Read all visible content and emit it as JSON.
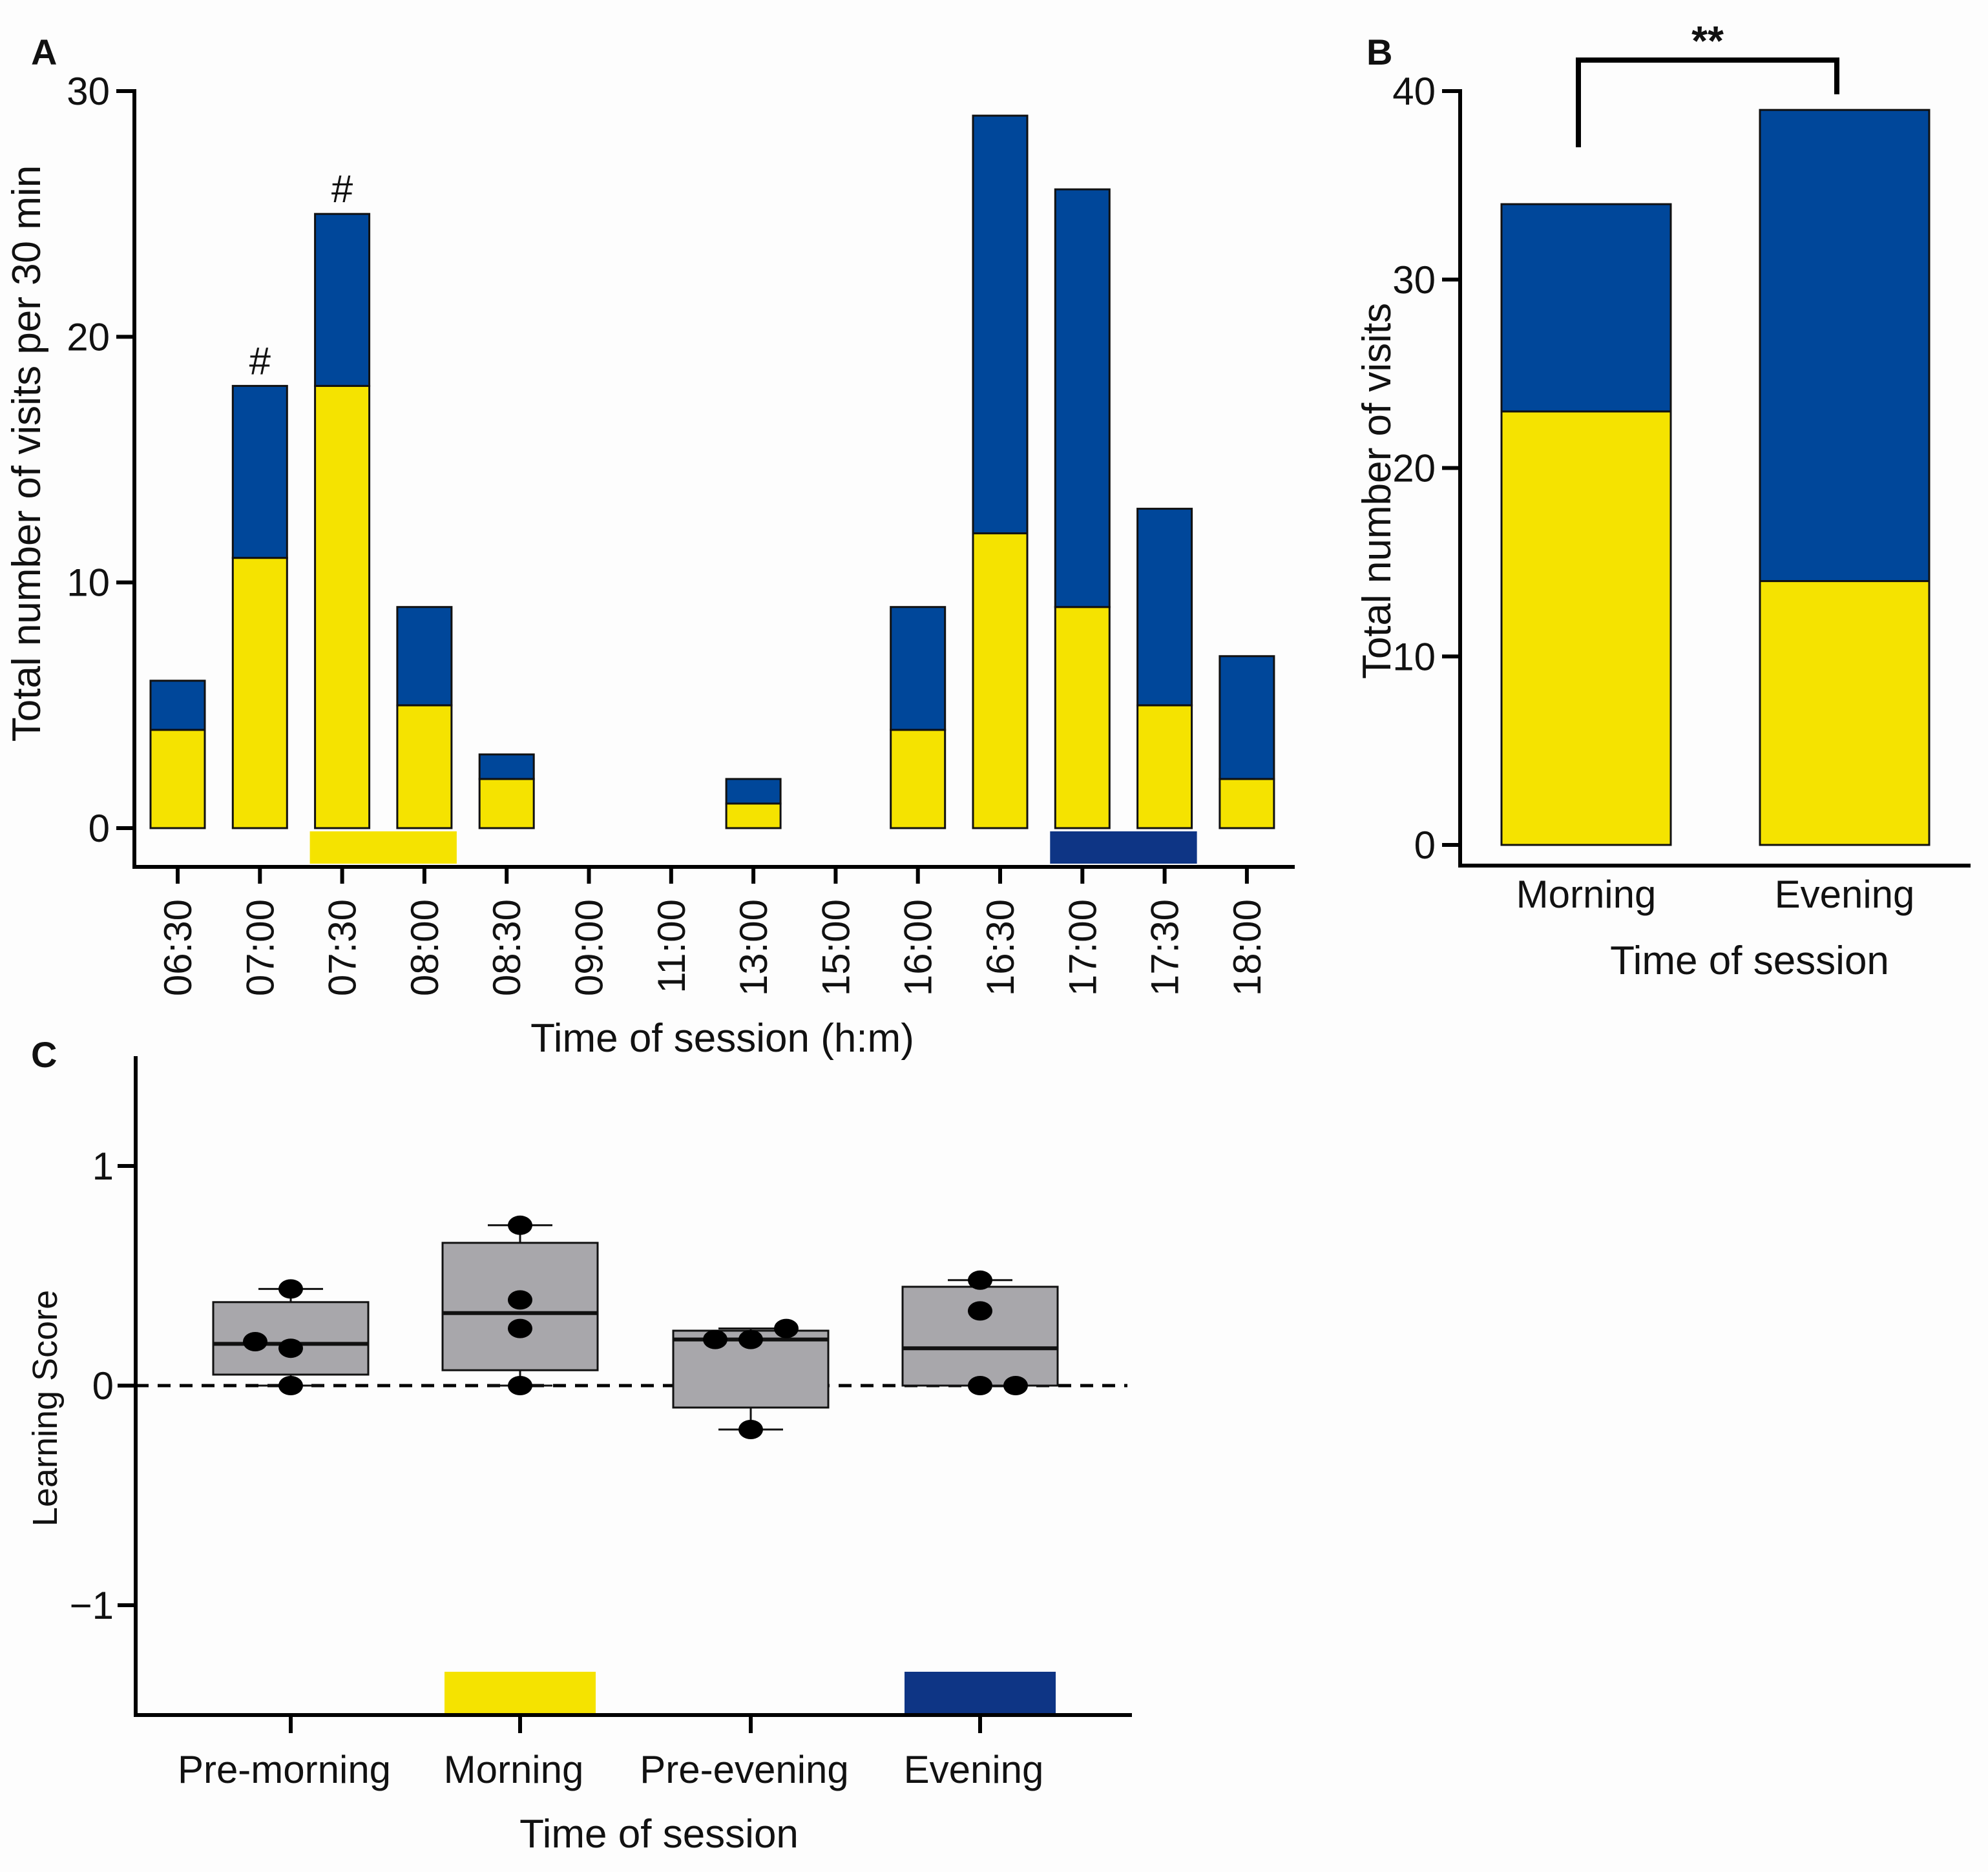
{
  "colors": {
    "yellow": "#f5e300",
    "blue": "#00479a",
    "navy": "#0e3585",
    "box_fill": "#a8a7ab"
  },
  "chart_data": [
    {
      "panel": "A",
      "type": "bar",
      "stacked": true,
      "categories": [
        "06:30",
        "07:00",
        "07:30",
        "08:00",
        "08:30",
        "09:00",
        "11:00",
        "13:00",
        "15:00",
        "16:00",
        "16:30",
        "17:00",
        "17:30",
        "18:00"
      ],
      "series": [
        {
          "name": "yellow",
          "color": "#f5e300",
          "values": [
            4,
            11,
            18,
            5,
            2,
            0,
            0,
            1,
            0,
            4,
            12,
            9,
            5,
            2
          ]
        },
        {
          "name": "blue",
          "color": "#00479a",
          "values": [
            2,
            7,
            7,
            4,
            1,
            0,
            0,
            1,
            0,
            5,
            17,
            17,
            8,
            5
          ]
        }
      ],
      "totals": [
        6,
        18,
        25,
        9,
        3,
        0,
        0,
        2,
        0,
        9,
        29,
        26,
        13,
        7
      ],
      "annotations": [
        {
          "category": "07:00",
          "text": "#"
        },
        {
          "category": "07:30",
          "text": "#"
        }
      ],
      "period_markers": [
        {
          "color": "yellow",
          "from": "07:30",
          "to": "08:00"
        },
        {
          "color": "navy",
          "from": "17:00",
          "to": "17:30"
        }
      ],
      "xlabel": "Time of session (h:m)",
      "ylabel": "Total number of visits per 30 min",
      "ylim": [
        0,
        30
      ],
      "yticks": [
        "0",
        "10",
        "20",
        "30"
      ]
    },
    {
      "panel": "B",
      "type": "bar",
      "stacked": true,
      "categories": [
        "Morning",
        "Evening"
      ],
      "series": [
        {
          "name": "yellow",
          "color": "#f5e300",
          "values": [
            23,
            14
          ]
        },
        {
          "name": "blue",
          "color": "#00479a",
          "values": [
            11,
            25
          ]
        }
      ],
      "totals": [
        34,
        39
      ],
      "significance": {
        "between": [
          "Morning",
          "Evening"
        ],
        "text": "**"
      },
      "xlabel": "Time of session",
      "ylabel": "Total number of visits",
      "ylim": [
        0,
        40
      ],
      "yticks": [
        "0",
        "10",
        "20",
        "30",
        "40"
      ]
    },
    {
      "panel": "C",
      "type": "box",
      "categories": [
        "Pre-morning",
        "Morning",
        "Pre-evening",
        "Evening"
      ],
      "boxes": [
        {
          "q1": 0.05,
          "median": 0.19,
          "q3": 0.38,
          "min": 0.0,
          "max": 0.44
        },
        {
          "q1": 0.07,
          "median": 0.33,
          "q3": 0.65,
          "min": 0.0,
          "max": 0.73
        },
        {
          "q1": -0.1,
          "median": 0.21,
          "q3": 0.25,
          "min": -0.2,
          "max": 0.26
        },
        {
          "q1": 0.0,
          "median": 0.17,
          "q3": 0.45,
          "min": 0.0,
          "max": 0.48
        }
      ],
      "points": [
        [
          0.44,
          0.2,
          0.17,
          0.0
        ],
        [
          0.73,
          0.39,
          0.26,
          0.0
        ],
        [
          0.21,
          0.21,
          0.26,
          -0.2
        ],
        [
          0.48,
          0.34,
          0.0,
          0.0
        ]
      ],
      "reference_line": 0,
      "period_markers": [
        {
          "category": "Morning",
          "color": "yellow"
        },
        {
          "category": "Evening",
          "color": "navy"
        }
      ],
      "xlabel": "Time of session",
      "ylabel": "Learning Score",
      "ylim": [
        -1.5,
        1.5
      ],
      "yticks": [
        "−1",
        "0",
        "1"
      ]
    }
  ],
  "panels": {
    "a": {
      "letter": "A"
    },
    "b": {
      "letter": "B"
    },
    "c": {
      "letter": "C"
    }
  }
}
